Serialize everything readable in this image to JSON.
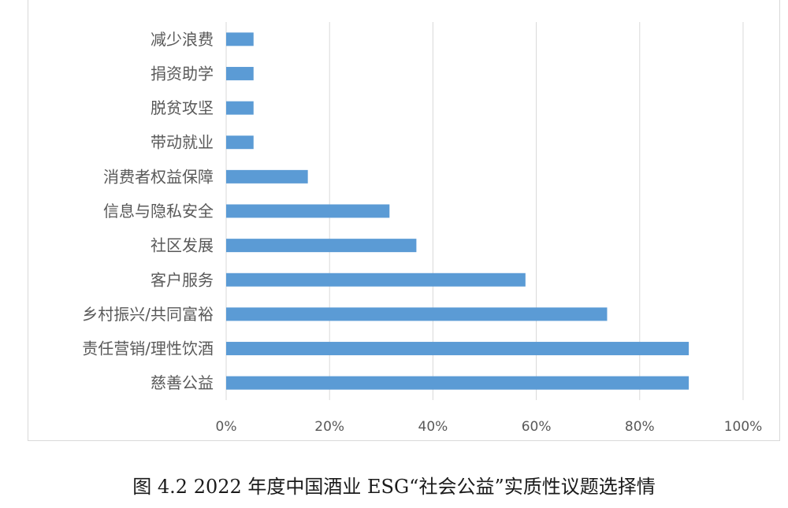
{
  "caption": "图 4.2 2022 年度中国酒业 ESG“社会公益”实质性议题选择情",
  "chart_data": {
    "type": "bar",
    "orientation": "horizontal",
    "categories": [
      "减少浪费",
      "捐资助学",
      "脱贫攻坚",
      "带动就业",
      "消费者权益保障",
      "信息与隐私安全",
      "社区发展",
      "客户服务",
      "乡村振兴/共同富裕",
      "责任营销/理性饮酒",
      "慈善公益"
    ],
    "values": [
      0.053,
      0.053,
      0.053,
      0.053,
      0.158,
      0.316,
      0.368,
      0.579,
      0.737,
      0.895,
      0.895
    ],
    "xlim": [
      0,
      1
    ],
    "xticks": [
      "0%",
      "20%",
      "40%",
      "60%",
      "80%",
      "100%"
    ],
    "grid": true,
    "bar_color": "#5b9bd5",
    "grid_color": "#d9d9d9",
    "text_color": "#595959"
  }
}
